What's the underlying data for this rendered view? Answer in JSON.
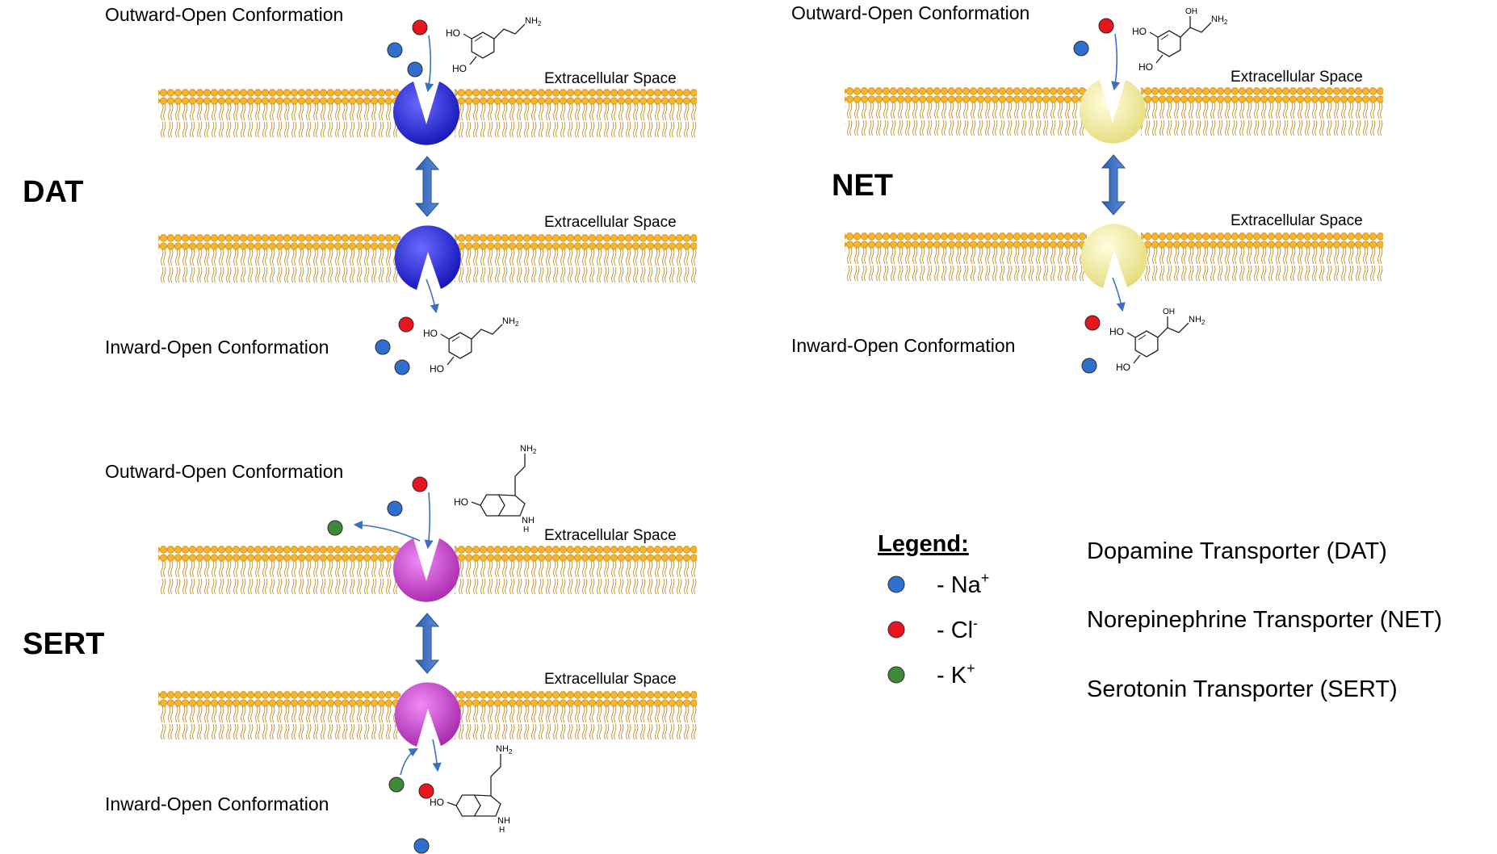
{
  "panels": [
    {
      "id": "dat",
      "transporter_label": "DAT",
      "outward_label": "Outward-Open Conformation",
      "inward_label": "Inward-Open Conformation",
      "extracellular_label_top": "Extracellular Space",
      "extracellular_label_bottom": "Extracellular Space",
      "protein_color": "#2b2bd6",
      "ligand": "dopamine"
    },
    {
      "id": "net",
      "transporter_label": "NET",
      "outward_label": "Outward-Open Conformation",
      "inward_label": "Inward-Open Conformation",
      "extracellular_label_top": "Extracellular Space",
      "extracellular_label_bottom": "Extracellular Space",
      "protein_color": "#f2f0a8",
      "ligand": "norepinephrine"
    },
    {
      "id": "sert",
      "transporter_label": "SERT",
      "outward_label": "Outward-Open Conformation",
      "inward_label": "Inward-Open Conformation",
      "extracellular_label_top": "Extracellular Space",
      "extracellular_label_bottom": "Extracellular Space",
      "protein_color": "#c43fc9",
      "ligand": "serotonin"
    }
  ],
  "legend": {
    "title": "Legend:",
    "items": [
      {
        "color": "#2f6fd0",
        "symbol": "- Na",
        "sup": "+"
      },
      {
        "color": "#e8141e",
        "symbol": "- Cl",
        "sup": "-"
      },
      {
        "color": "#3f8a3a",
        "symbol": "- K",
        "sup": "+"
      }
    ]
  },
  "definitions": [
    "Dopamine Transporter (DAT)",
    "Norepinephrine Transporter (NET)",
    "Serotonin Transporter (SERT)"
  ],
  "chem_labels": {
    "HO": "HO",
    "NH2": "NH",
    "NH2_sub": "2",
    "OH": "OH",
    "NH": "NH",
    "H": "H"
  },
  "colors": {
    "membrane_head": "#f5b52e",
    "membrane_tail": "#c98d1e",
    "arrow": "#3b6fc2",
    "text": "#000000"
  }
}
